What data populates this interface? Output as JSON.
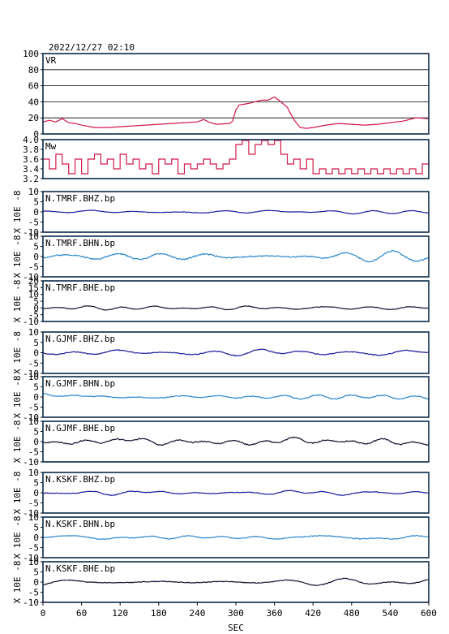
{
  "header": {
    "timestamp": "2022/12/27 02:10"
  },
  "colors": {
    "vr": "#d01848",
    "mw": "#d01848",
    "z": "#1a1a9a",
    "n": "#2a86cc",
    "e": "#101030",
    "frame": "#0a2a4a"
  },
  "chart_data": {
    "type": "line",
    "xlabel": "SEC",
    "xlim": [
      0,
      600
    ],
    "xticks": [
      0,
      60,
      120,
      180,
      240,
      300,
      360,
      420,
      480,
      540,
      600
    ],
    "panels": [
      {
        "name": "VR",
        "ylabel": "",
        "ylim": [
          0,
          100
        ],
        "yticks": [
          0,
          20,
          40,
          60,
          80,
          100
        ],
        "grid": true,
        "color": "vr",
        "points": [
          [
            0,
            15
          ],
          [
            10,
            17
          ],
          [
            20,
            15
          ],
          [
            30,
            19
          ],
          [
            40,
            14
          ],
          [
            50,
            13
          ],
          [
            60,
            11
          ],
          [
            80,
            8
          ],
          [
            100,
            8
          ],
          [
            120,
            9
          ],
          [
            140,
            10
          ],
          [
            160,
            11
          ],
          [
            180,
            12
          ],
          [
            200,
            13
          ],
          [
            220,
            14
          ],
          [
            240,
            15
          ],
          [
            250,
            18
          ],
          [
            260,
            14
          ],
          [
            270,
            12
          ],
          [
            290,
            13
          ],
          [
            295,
            16
          ],
          [
            300,
            30
          ],
          [
            305,
            36
          ],
          [
            320,
            38
          ],
          [
            340,
            42
          ],
          [
            350,
            42
          ],
          [
            360,
            46
          ],
          [
            370,
            40
          ],
          [
            380,
            33
          ],
          [
            390,
            18
          ],
          [
            400,
            8
          ],
          [
            410,
            7
          ],
          [
            420,
            8
          ],
          [
            440,
            11
          ],
          [
            460,
            13
          ],
          [
            480,
            12
          ],
          [
            500,
            11
          ],
          [
            520,
            12
          ],
          [
            540,
            14
          ],
          [
            560,
            16
          ],
          [
            580,
            20
          ],
          [
            600,
            19
          ]
        ]
      },
      {
        "name": "Mw",
        "ylabel": "",
        "ylim": [
          3.2,
          4.0
        ],
        "yticks": [
          3.2,
          3.4,
          3.6,
          3.8,
          4.0
        ],
        "ytickLabels": [
          "3.2",
          "3.4",
          "3.6",
          "3.8",
          "4.0"
        ],
        "grid": false,
        "color": "mw",
        "step": true,
        "points": [
          [
            0,
            3.6
          ],
          [
            10,
            3.4
          ],
          [
            20,
            3.7
          ],
          [
            30,
            3.5
          ],
          [
            40,
            3.3
          ],
          [
            50,
            3.6
          ],
          [
            60,
            3.3
          ],
          [
            70,
            3.6
          ],
          [
            80,
            3.7
          ],
          [
            90,
            3.5
          ],
          [
            100,
            3.6
          ],
          [
            110,
            3.4
          ],
          [
            120,
            3.7
          ],
          [
            130,
            3.5
          ],
          [
            140,
            3.6
          ],
          [
            150,
            3.4
          ],
          [
            160,
            3.5
          ],
          [
            170,
            3.3
          ],
          [
            180,
            3.6
          ],
          [
            190,
            3.5
          ],
          [
            200,
            3.6
          ],
          [
            210,
            3.3
          ],
          [
            220,
            3.5
          ],
          [
            230,
            3.4
          ],
          [
            240,
            3.5
          ],
          [
            250,
            3.6
          ],
          [
            260,
            3.5
          ],
          [
            270,
            3.4
          ],
          [
            280,
            3.5
          ],
          [
            290,
            3.6
          ],
          [
            300,
            3.9
          ],
          [
            310,
            4.0
          ],
          [
            320,
            3.7
          ],
          [
            330,
            3.9
          ],
          [
            340,
            4.0
          ],
          [
            350,
            3.9
          ],
          [
            360,
            4.0
          ],
          [
            370,
            3.7
          ],
          [
            380,
            3.5
          ],
          [
            390,
            3.6
          ],
          [
            400,
            3.4
          ],
          [
            410,
            3.6
          ],
          [
            420,
            3.3
          ],
          [
            430,
            3.4
          ],
          [
            440,
            3.3
          ],
          [
            450,
            3.4
          ],
          [
            460,
            3.3
          ],
          [
            470,
            3.4
          ],
          [
            480,
            3.3
          ],
          [
            490,
            3.4
          ],
          [
            500,
            3.3
          ],
          [
            510,
            3.4
          ],
          [
            520,
            3.3
          ],
          [
            530,
            3.4
          ],
          [
            540,
            3.3
          ],
          [
            550,
            3.4
          ],
          [
            560,
            3.3
          ],
          [
            570,
            3.4
          ],
          [
            580,
            3.3
          ],
          [
            590,
            3.5
          ],
          [
            600,
            3.6
          ]
        ]
      },
      {
        "name": "N.TMRF.BHZ.bp",
        "ylabel": "X 10E -8",
        "ylim": [
          -10,
          10
        ],
        "yticks": [
          -10,
          -5,
          0,
          5,
          10
        ],
        "color": "z",
        "amp": 0.6,
        "seed": 1
      },
      {
        "name": "N.TMRF.BHN.bp",
        "ylabel": "X 10E -8",
        "ylim": [
          -10,
          10
        ],
        "yticks": [
          -10,
          -5,
          0,
          5,
          10
        ],
        "color": "n",
        "amp": 1.6,
        "seed": 2
      },
      {
        "name": "N.TMRF.BHE.bp",
        "ylabel": "X 10E -8",
        "ylim": [
          -10,
          20
        ],
        "yticks": [
          -10,
          -5,
          0,
          5,
          10,
          15,
          20
        ],
        "color": "e",
        "amp": 1.1,
        "seed": 3
      },
      {
        "name": "N.GJMF.BHZ.bp",
        "ylabel": "X 10E -8",
        "ylim": [
          -10,
          10
        ],
        "yticks": [
          -10,
          -5,
          0,
          5,
          10
        ],
        "color": "z",
        "amp": 1.0,
        "seed": 4
      },
      {
        "name": "N.GJMF.BHN.bp",
        "ylabel": "X 10E -8",
        "ylim": [
          -10,
          10
        ],
        "yticks": [
          -10,
          -5,
          0,
          5,
          10
        ],
        "color": "n",
        "amp": 1.1,
        "offset": 2,
        "seed": 5
      },
      {
        "name": "N.GJMF.BHE.bp",
        "ylabel": "X 10E -8",
        "ylim": [
          -10,
          10
        ],
        "yticks": [
          -10,
          -5,
          0,
          5,
          10
        ],
        "color": "e",
        "amp": 1.4,
        "seed": 6
      },
      {
        "name": "N.KSKF.BHZ.bp",
        "ylabel": "X 10E -8",
        "ylim": [
          -10,
          10
        ],
        "yticks": [
          -10,
          -5,
          0,
          5,
          10
        ],
        "color": "z",
        "amp": 0.9,
        "seed": 7
      },
      {
        "name": "N.KSKF.BHN.bp",
        "ylabel": "X 10E -8",
        "ylim": [
          -10,
          10
        ],
        "yticks": [
          -10,
          -5,
          0,
          5,
          10
        ],
        "color": "n",
        "amp": 1.0,
        "seed": 8
      },
      {
        "name": "N.KSKF.BHE.bp",
        "ylabel": "X 10E -8",
        "ylim": [
          -10,
          10
        ],
        "yticks": [
          -10,
          -5,
          0,
          5,
          10
        ],
        "color": "e",
        "amp": 1.0,
        "seed": 9
      }
    ]
  }
}
